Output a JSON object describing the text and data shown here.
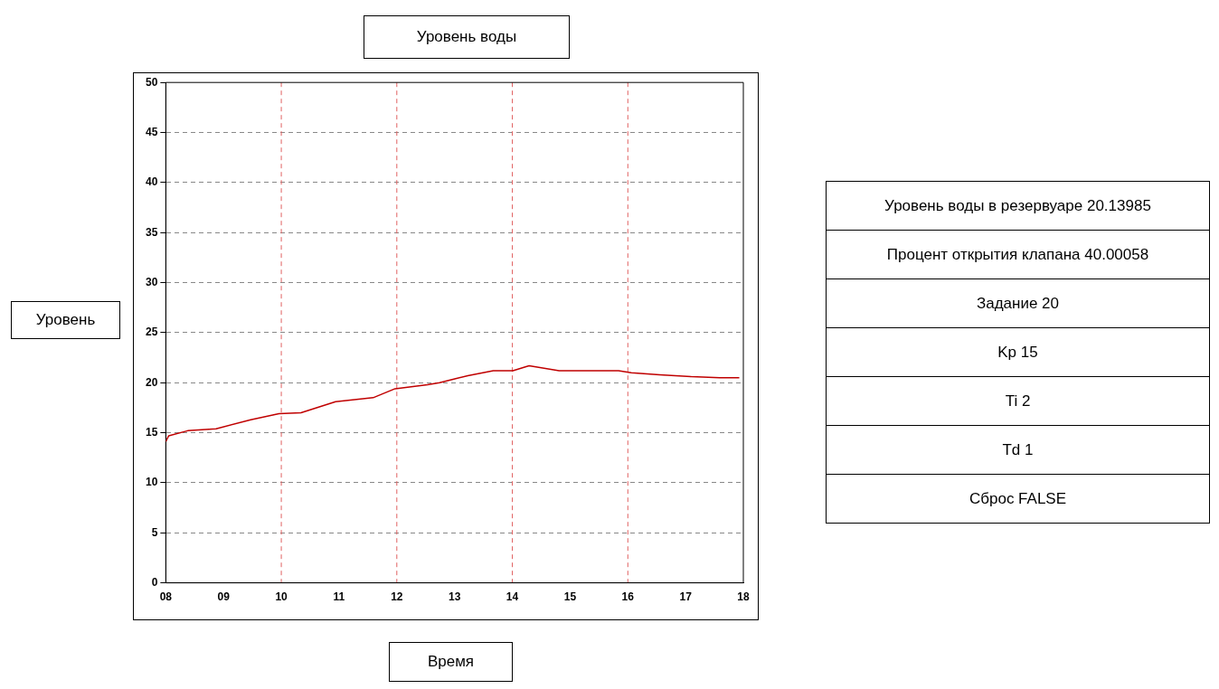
{
  "chart_data": {
    "type": "line",
    "title": "Уровень воды",
    "xlabel": "Время",
    "ylabel": "Уровень",
    "x": [
      8.0,
      8.05,
      8.38,
      8.87,
      9.47,
      9.96,
      10.34,
      10.94,
      11.59,
      11.97,
      12.53,
      12.74,
      13.02,
      13.23,
      13.67,
      14.01,
      14.29,
      14.81,
      15.84,
      16.06,
      16.55,
      17.1,
      17.59,
      17.93
    ],
    "series": [
      {
        "color": "#c00000",
        "values": [
          14.1,
          14.7,
          15.2,
          15.4,
          16.3,
          16.9,
          17.0,
          18.1,
          18.5,
          19.4,
          19.8,
          20.0,
          20.4,
          20.7,
          21.2,
          21.2,
          21.7,
          21.2,
          21.2,
          21.0,
          20.8,
          20.6,
          20.5,
          20.5
        ]
      }
    ],
    "xlim": [
      8,
      18
    ],
    "xticks": [
      {
        "value": 8,
        "label": "08"
      },
      {
        "value": 9,
        "label": "09"
      },
      10,
      11,
      12,
      13,
      14,
      15,
      16,
      17,
      18
    ],
    "ylim": [
      0,
      50
    ],
    "yticks": [
      0,
      5,
      10,
      15,
      20,
      25,
      30,
      35,
      40,
      45,
      50
    ],
    "grid": "y",
    "legend": false,
    "marker": "none",
    "line_style": "solid",
    "ref_lines": [
      {
        "axis": "x",
        "value": 10,
        "color": "#e06060",
        "line_style": "dashed"
      },
      {
        "axis": "x",
        "value": 12,
        "color": "#e06060",
        "line_style": "dashed"
      },
      {
        "axis": "x",
        "value": 14,
        "color": "#e06060",
        "line_style": "dashed"
      },
      {
        "axis": "x",
        "value": 16,
        "color": "#e06060",
        "line_style": "dashed"
      }
    ],
    "annotations": [
      "Уровень воды в резервуаре 20.13985",
      "Процент открытия клапана 40.00058",
      "Задание 20",
      "Kp 15",
      "Ti 2",
      "Td 1",
      "Сброс FALSE"
    ]
  }
}
